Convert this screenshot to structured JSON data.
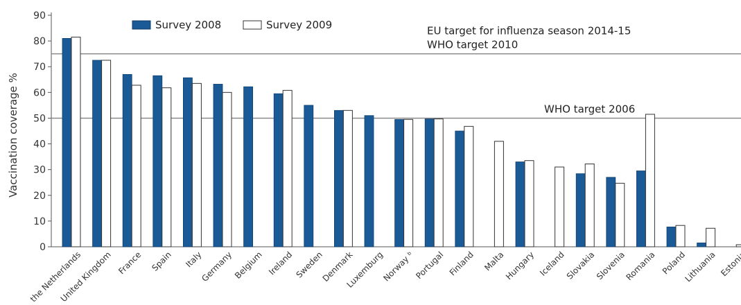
{
  "chart_data": {
    "type": "bar",
    "ylabel": "Vaccination coverage %",
    "xlabel": "",
    "ylim": [
      0,
      90
    ],
    "yticks": [
      0,
      10,
      20,
      30,
      40,
      50,
      60,
      70,
      80,
      90
    ],
    "grid": false,
    "legend_position": "top-left",
    "categories": [
      "the Netherlands",
      "United Kingdom",
      "France",
      "Spain",
      "Italy",
      "Germany",
      "Belgium",
      "Ireland",
      "Sweden",
      "Denmark",
      "Luxemburg",
      "Norway ᵇ",
      "Portugal",
      "Finland",
      "Malta",
      "Hungary",
      "Iceland",
      "Slovakia",
      "Slovenia",
      "Romania",
      "Poland",
      "Lithuania",
      "Estonia"
    ],
    "series": [
      {
        "name": "Survey 2008",
        "color": "#1a5a96",
        "values": [
          81,
          72.5,
          67,
          66.5,
          65.7,
          63.2,
          62.2,
          59.5,
          55,
          53,
          51,
          49.5,
          49.7,
          45,
          null,
          33,
          null,
          28.4,
          27,
          29.5,
          7.7,
          1.5,
          null
        ]
      },
      {
        "name": "Survey 2009",
        "color": "#ffffff",
        "values": [
          81.5,
          72.5,
          62.8,
          61.8,
          63.5,
          60,
          null,
          60.8,
          null,
          53,
          null,
          49.5,
          49.7,
          46.8,
          41,
          33.5,
          31,
          32.2,
          24.7,
          51.5,
          8.3,
          7.2,
          0.8
        ]
      }
    ],
    "reference_lines": [
      {
        "value": 75,
        "labels": [
          "EU target for influenza season 2014-15",
          "WHO target 2010"
        ]
      },
      {
        "value": 50,
        "labels": [
          "WHO target 2006"
        ]
      }
    ]
  }
}
